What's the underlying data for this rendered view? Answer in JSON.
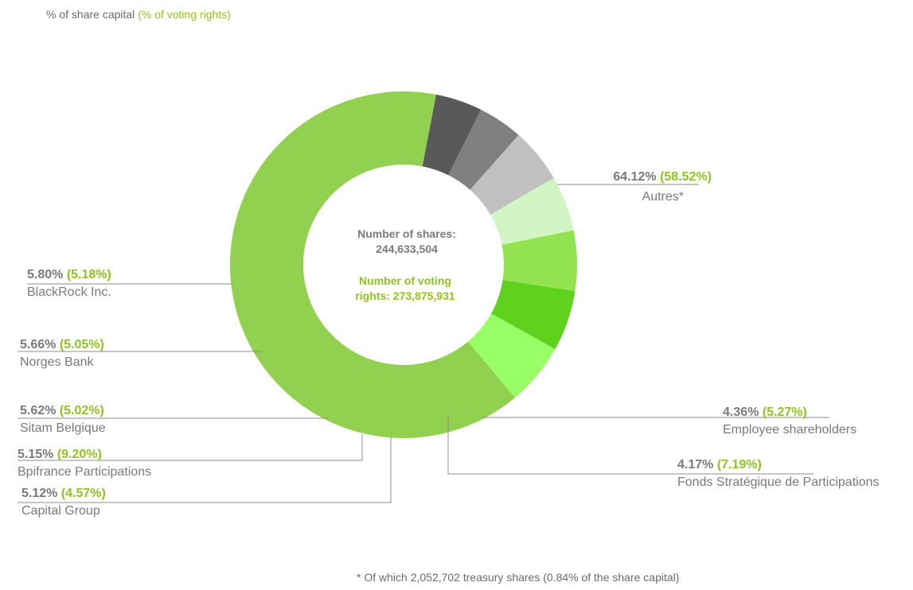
{
  "legend": {
    "prefix": "%  of share capital",
    "suffix": "(% of voting rights)"
  },
  "center": {
    "shares_label": "Number of shares:",
    "shares_value": "244,633,504",
    "voting_label": "Number of voting",
    "voting_value": "rights: 273,875,931"
  },
  "footnote": "* Of which 2,052,702 treasury shares (0.84% of the share capital)",
  "colors": {
    "text_gray": "#7a7a7a",
    "accent_green": "#8fc31f",
    "leader_line": "#8c8c8c"
  },
  "chart_data": {
    "type": "donut",
    "series": [
      {
        "name": "Autres*",
        "share_capital": "64.12%",
        "voting_rights": "(58.52%)",
        "value": 64.12,
        "color": "#92d050"
      },
      {
        "name": "Employee shareholders",
        "share_capital": "4.36%",
        "voting_rights": "(5.27%)",
        "value": 4.36,
        "color": "#595959"
      },
      {
        "name": "Fonds Stratégique de Participations",
        "share_capital": "4.17%",
        "voting_rights": "(7.19%)",
        "value": 4.17,
        "color": "#808080"
      },
      {
        "name": "Capital Group",
        "share_capital": "5.12%",
        "voting_rights": "(4.57%)",
        "value": 5.12,
        "color": "#c0c0c0"
      },
      {
        "name": "Bpifrance Participations",
        "share_capital": "5.15%",
        "voting_rights": "(9.20%)",
        "value": 5.15,
        "color": "#d2f5c4"
      },
      {
        "name": "Sitam Belgique",
        "share_capital": "5.62%",
        "voting_rights": "(5.02%)",
        "value": 5.62,
        "color": "#92e34f"
      },
      {
        "name": "Norges Bank",
        "share_capital": "5.66%",
        "voting_rights": "(5.05%)",
        "value": 5.66,
        "color": "#5fd21e"
      },
      {
        "name": "BlackRock Inc.",
        "share_capital": "5.80%",
        "voting_rights": "(5.18%)",
        "value": 5.8,
        "color": "#99ff66"
      }
    ]
  }
}
